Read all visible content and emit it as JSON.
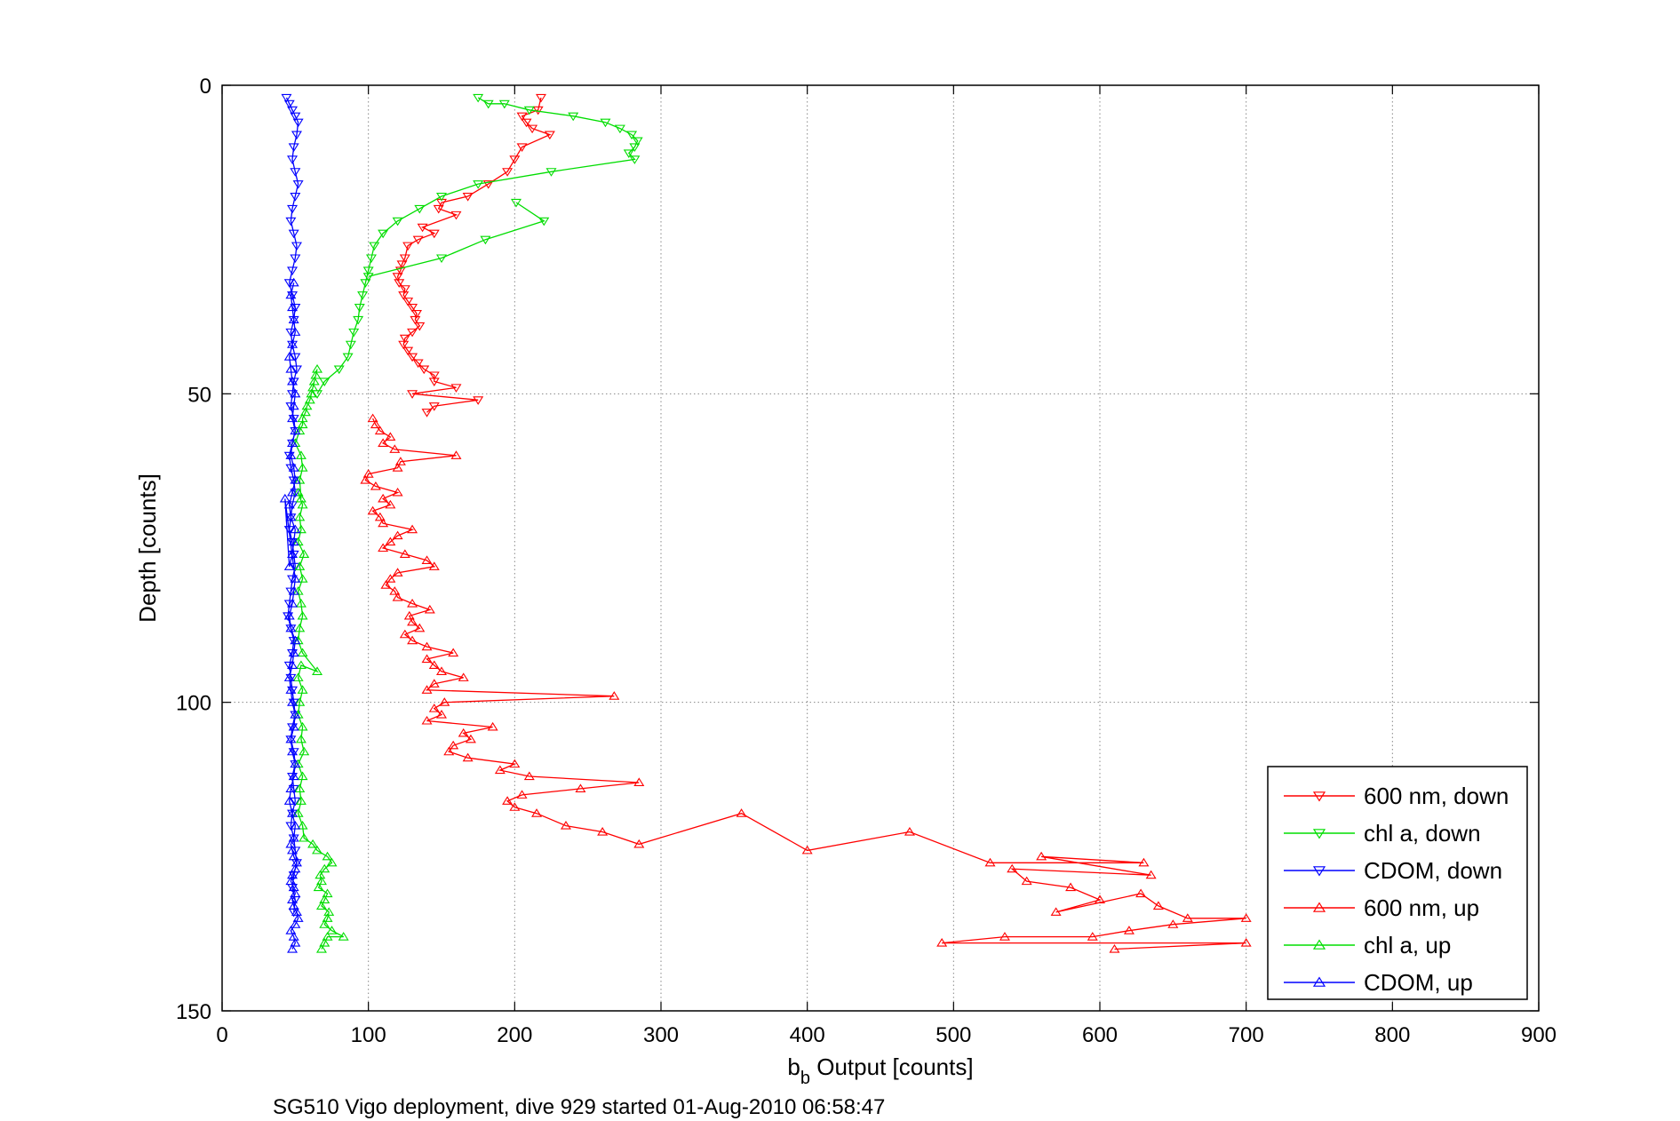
{
  "chart_data": {
    "type": "scatter",
    "title": "",
    "xlabel_main": "b",
    "xlabel_sub": "b",
    "xlabel_rest": " Output [counts]",
    "ylabel": "Depth [counts]",
    "caption": "SG510 Vigo deployment, dive 929 started 01-Aug-2010 06:58:47",
    "xlim": [
      0,
      900
    ],
    "ylim": [
      0,
      150
    ],
    "y_reversed": true,
    "grid": true,
    "legend_position": "bottom-right",
    "xticks": [
      0,
      100,
      200,
      300,
      400,
      500,
      600,
      700,
      800,
      900
    ],
    "yticks": [
      0,
      50,
      100,
      150
    ],
    "xtick_labels": [
      "0",
      "100",
      "200",
      "300",
      "400",
      "500",
      "600",
      "700",
      "800",
      "900"
    ],
    "ytick_labels": [
      "0",
      "50",
      "100",
      "150"
    ],
    "series": [
      {
        "name": "600 nm, down",
        "color": "#ff0000",
        "marker": "triangle-down",
        "x": [
          218,
          216,
          205,
          208,
          212,
          224,
          205,
          200,
          195,
          182,
          168,
          150,
          148,
          160,
          137,
          145,
          134,
          127,
          125,
          123,
          122,
          120,
          121,
          125,
          124,
          127,
          130,
          133,
          132,
          135,
          130,
          125,
          124,
          127,
          130,
          134,
          138,
          145,
          145,
          160,
          130,
          175,
          145,
          140
        ],
        "y": [
          2,
          4,
          5,
          6,
          7,
          8,
          10,
          12,
          14,
          16,
          18,
          19,
          20,
          21,
          23,
          24,
          25,
          26,
          28,
          29,
          30,
          31,
          32,
          33,
          34,
          35,
          36,
          37,
          38,
          39,
          40,
          41,
          42,
          43,
          44,
          45,
          46,
          47,
          48,
          49,
          50,
          51,
          52,
          53
        ]
      },
      {
        "name": "chl a, down",
        "color": "#00dd00",
        "marker": "triangle-down",
        "x": [
          175,
          182,
          193,
          210,
          240,
          262,
          272,
          280,
          284,
          282,
          278,
          282,
          225,
          175,
          150,
          135,
          120,
          110,
          104,
          102,
          100,
          98,
          96,
          94,
          93,
          90,
          88,
          86,
          80,
          70,
          65
        ],
        "y": [
          2,
          3,
          3,
          4,
          5,
          6,
          7,
          8,
          9,
          10,
          11,
          12,
          14,
          16,
          18,
          20,
          22,
          24,
          26,
          28,
          30,
          32,
          34,
          36,
          38,
          40,
          42,
          44,
          46,
          48,
          50
        ],
        "x2": [
          201,
          220,
          180,
          150,
          100
        ],
        "y2": [
          19,
          22,
          25,
          28,
          31
        ]
      },
      {
        "name": "CDOM, down",
        "color": "#0000ff",
        "marker": "triangle-down",
        "x": [
          44,
          46,
          48,
          50,
          52,
          51,
          49,
          48,
          50,
          52,
          50,
          48,
          47,
          49,
          51,
          50,
          48,
          46,
          48,
          50,
          49,
          47,
          48,
          50,
          51,
          49,
          48,
          47,
          49,
          50,
          48,
          46,
          47,
          49,
          50,
          48,
          47,
          46,
          48,
          49,
          50,
          48,
          47,
          46,
          45,
          47,
          49,
          48,
          46,
          47,
          48,
          49,
          50,
          48,
          47,
          49,
          50,
          48,
          49,
          50,
          48,
          47,
          49,
          50,
          51,
          49,
          48,
          50,
          49
        ],
        "y": [
          2,
          3,
          4,
          5,
          6,
          8,
          10,
          12,
          14,
          16,
          18,
          20,
          22,
          24,
          26,
          28,
          30,
          32,
          34,
          36,
          38,
          40,
          42,
          44,
          46,
          48,
          50,
          52,
          54,
          56,
          58,
          60,
          62,
          64,
          66,
          68,
          70,
          72,
          74,
          76,
          78,
          80,
          82,
          84,
          86,
          88,
          90,
          92,
          94,
          96,
          98,
          100,
          102,
          104,
          106,
          108,
          110,
          112,
          114,
          116,
          118,
          120,
          122,
          124,
          126,
          128,
          130,
          132,
          134
        ]
      },
      {
        "name": "600 nm, up",
        "color": "#ff0000",
        "marker": "triangle-up",
        "x": [
          610,
          700,
          492,
          535,
          595,
          620,
          650,
          700,
          660,
          640,
          628,
          570,
          600,
          580,
          550,
          540,
          635,
          560,
          630,
          525,
          470,
          400,
          355,
          285,
          260,
          235,
          215,
          200,
          195,
          205,
          245,
          285,
          210,
          190,
          200,
          168,
          155,
          158,
          170,
          165,
          185,
          140,
          150,
          145,
          152,
          268,
          140,
          145,
          165,
          150,
          145,
          140,
          158,
          140,
          130,
          125,
          135,
          130,
          128,
          142,
          130,
          120,
          118,
          112,
          115,
          120,
          145,
          140,
          125,
          110,
          115,
          120,
          130,
          110,
          108,
          103,
          115,
          110,
          120,
          105,
          98,
          100,
          120,
          122,
          160,
          118,
          110,
          115,
          108,
          105,
          103
        ],
        "y": [
          140,
          139,
          139,
          138,
          138,
          137,
          136,
          135,
          135,
          133,
          131,
          134,
          132,
          130,
          129,
          127,
          128,
          125,
          126,
          126,
          121,
          124,
          118,
          123,
          121,
          120,
          118,
          117,
          116,
          115,
          114,
          113,
          112,
          111,
          110,
          109,
          108,
          107,
          106,
          105,
          104,
          103,
          102,
          101,
          100,
          99,
          98,
          97,
          96,
          95,
          94,
          93,
          92,
          91,
          90,
          89,
          88,
          87,
          86,
          85,
          84,
          83,
          82,
          81,
          80,
          79,
          78,
          77,
          76,
          75,
          74,
          73,
          72,
          71,
          70,
          69,
          68,
          67,
          66,
          65,
          64,
          63,
          62,
          61,
          60,
          59,
          58,
          57,
          56,
          55,
          54
        ]
      },
      {
        "name": "chl a, up",
        "color": "#00dd00",
        "marker": "triangle-up",
        "x": [
          68,
          70,
          72,
          83,
          75,
          70,
          72,
          73,
          68,
          70,
          72,
          66,
          68,
          67,
          70,
          75,
          72,
          65,
          62,
          56,
          55,
          52,
          54,
          53,
          55,
          52,
          56,
          54,
          55,
          52,
          53,
          55,
          52,
          54,
          65,
          55,
          52,
          53,
          55,
          54,
          52,
          55,
          53,
          56,
          52,
          54,
          53,
          55,
          52,
          54,
          53,
          55,
          54,
          50,
          53,
          55,
          55,
          57,
          58,
          60,
          61,
          62,
          63,
          64,
          65
        ],
        "y": [
          140,
          139,
          138,
          138,
          137,
          136,
          135,
          134,
          133,
          132,
          131,
          130,
          129,
          128,
          127,
          126,
          125,
          124,
          123,
          122,
          120,
          118,
          116,
          114,
          112,
          110,
          108,
          106,
          104,
          102,
          100,
          98,
          96,
          94,
          95,
          92,
          90,
          88,
          86,
          84,
          82,
          80,
          78,
          76,
          74,
          72,
          70,
          68,
          66,
          67,
          64,
          62,
          60,
          58,
          56,
          55,
          54,
          53,
          52,
          51,
          50,
          49,
          48,
          47,
          46
        ]
      },
      {
        "name": "CDOM, up",
        "color": "#0000ff",
        "marker": "triangle-up",
        "x": [
          48,
          50,
          49,
          47,
          50,
          52,
          51,
          49,
          48,
          50,
          49,
          47,
          48,
          50,
          51,
          49,
          48,
          47,
          49,
          50,
          48,
          46,
          47,
          49,
          50,
          48,
          47,
          49,
          50,
          48,
          47,
          46,
          48,
          49,
          50,
          47,
          46,
          48,
          49,
          50,
          43,
          46,
          48,
          49,
          50,
          47,
          46,
          48,
          50,
          49,
          47,
          48,
          50,
          48,
          49,
          50,
          48,
          47,
          46,
          48,
          50,
          49,
          48,
          47,
          49
        ],
        "y": [
          140,
          139,
          138,
          137,
          136,
          135,
          134,
          133,
          132,
          131,
          130,
          129,
          128,
          127,
          126,
          125,
          124,
          123,
          122,
          120,
          118,
          116,
          114,
          112,
          110,
          108,
          106,
          104,
          102,
          100,
          98,
          96,
          94,
          92,
          90,
          88,
          86,
          84,
          82,
          80,
          67,
          78,
          76,
          74,
          72,
          70,
          68,
          66,
          64,
          62,
          60,
          58,
          56,
          54,
          52,
          50,
          48,
          46,
          44,
          42,
          40,
          38,
          36,
          34,
          32
        ]
      }
    ]
  }
}
